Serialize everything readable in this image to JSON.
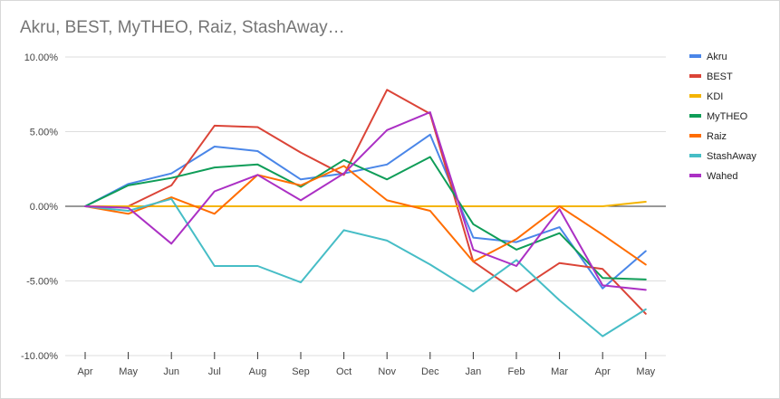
{
  "chart_data": {
    "type": "line",
    "title": "Akru, BEST, MyTHEO, Raiz, StashAway…",
    "xlabel": "",
    "ylabel": "",
    "categories": [
      "Apr",
      "May",
      "Jun",
      "Jul",
      "Aug",
      "Sep",
      "Oct",
      "Nov",
      "Dec",
      "Jan",
      "Feb",
      "Mar",
      "Apr",
      "May"
    ],
    "ylim": [
      -10,
      10
    ],
    "yticks": [
      {
        "value": 10,
        "label": "10.00%"
      },
      {
        "value": 5,
        "label": "5.00%"
      },
      {
        "value": 0,
        "label": "0.00%"
      },
      {
        "value": -5,
        "label": "-5.00%"
      },
      {
        "value": -10,
        "label": "-10.00%"
      }
    ],
    "grid": true,
    "legend_position": "right",
    "series": [
      {
        "name": "Akru",
        "color": "#4a86e8",
        "values": [
          0,
          1.5,
          2.2,
          4.0,
          3.7,
          1.8,
          2.2,
          2.8,
          4.8,
          -2.1,
          -2.4,
          -1.4,
          -5.5,
          -3.0
        ]
      },
      {
        "name": "BEST",
        "color": "#db4437",
        "values": [
          0,
          0.0,
          1.4,
          5.4,
          5.3,
          3.6,
          2.1,
          7.8,
          6.2,
          -3.7,
          -5.7,
          -3.8,
          -4.2,
          -7.2
        ]
      },
      {
        "name": "KDI",
        "color": "#f4b400",
        "values": [
          0,
          0,
          0,
          0,
          0,
          0,
          0,
          0,
          0,
          0,
          0,
          0,
          0,
          0.3
        ]
      },
      {
        "name": "MyTHEO",
        "color": "#0f9d58",
        "values": [
          0,
          1.4,
          1.9,
          2.6,
          2.8,
          1.3,
          3.1,
          1.8,
          3.3,
          -1.2,
          -2.9,
          -1.8,
          -4.8,
          -4.9
        ]
      },
      {
        "name": "Raiz",
        "color": "#ff6d00",
        "values": [
          0,
          -0.5,
          0.6,
          -0.5,
          2.1,
          1.4,
          2.7,
          0.4,
          -0.3,
          -3.7,
          -2.2,
          0.0,
          -1.9,
          -3.9
        ]
      },
      {
        "name": "StashAway",
        "color": "#46bdc6",
        "values": [
          0,
          -0.3,
          0.5,
          -4.0,
          -4.0,
          -5.1,
          -1.6,
          -2.3,
          -3.9,
          -5.7,
          -3.6,
          -6.3,
          -8.7,
          -6.9
        ]
      },
      {
        "name": "Wahed",
        "color": "#ab30c4",
        "values": [
          0,
          -0.1,
          -2.5,
          1.0,
          2.1,
          0.4,
          2.2,
          5.1,
          6.3,
          -2.9,
          -4.0,
          -0.2,
          -5.3,
          -5.6
        ]
      }
    ]
  }
}
